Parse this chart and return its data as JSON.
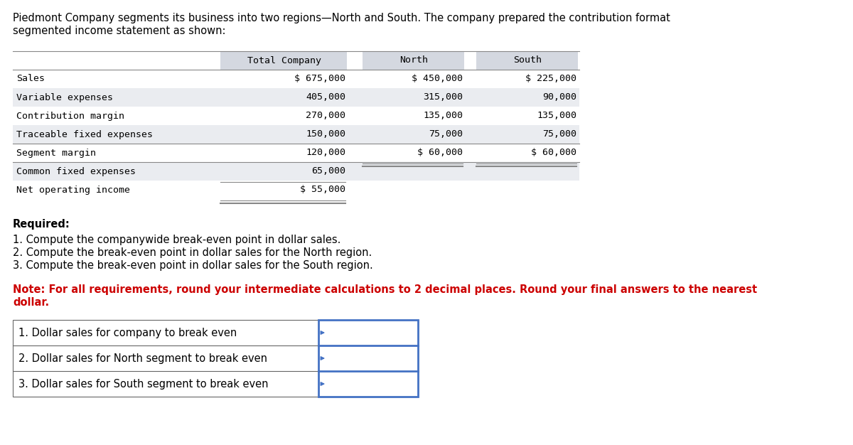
{
  "intro_text_line1": "Piedmont Company segments its business into two regions—North and South. The company prepared the contribution format",
  "intro_text_line2": "segmented income statement as shown:",
  "table_header": [
    "",
    "Total Company",
    "North",
    "South"
  ],
  "table_rows": [
    [
      "Sales",
      "$ 675,000",
      "$ 450,000",
      "$ 225,000"
    ],
    [
      "Variable expenses",
      "405,000",
      "315,000",
      "90,000"
    ],
    [
      "Contribution margin",
      "270,000",
      "135,000",
      "135,000"
    ],
    [
      "Traceable fixed expenses",
      "150,000",
      "75,000",
      "75,000"
    ],
    [
      "Segment margin",
      "120,000",
      "$ 60,000",
      "$ 60,000"
    ],
    [
      "Common fixed expenses",
      "65,000",
      "",
      ""
    ],
    [
      "Net operating income",
      "$ 55,000",
      "",
      ""
    ]
  ],
  "required_label": "Required:",
  "required_items": [
    "1. Compute the companywide break-even point in dollar sales.",
    "2. Compute the break-even point in dollar sales for the North region.",
    "3. Compute the break-even point in dollar sales for the South region."
  ],
  "note_text_line1": "Note: For all requirements, round your intermediate calculations to 2 decimal places. Round your final answers to the nearest",
  "note_text_line2": "dollar.",
  "answer_labels": [
    "1. Dollar sales for company to break even",
    "2. Dollar sales for North segment to break even",
    "3. Dollar sales for South segment to break even"
  ],
  "bg_color": "#ffffff",
  "text_color": "#000000",
  "note_color": "#cc0000",
  "table_header_bg": "#d4d8e0",
  "table_row_bg_odd": "#eaecf0",
  "table_row_bg_even": "#ffffff",
  "table_border_color": "#888888",
  "answer_box_border": "#4472c4",
  "mono_font": "DejaVu Sans Mono",
  "sans_font": "DejaVu Sans"
}
